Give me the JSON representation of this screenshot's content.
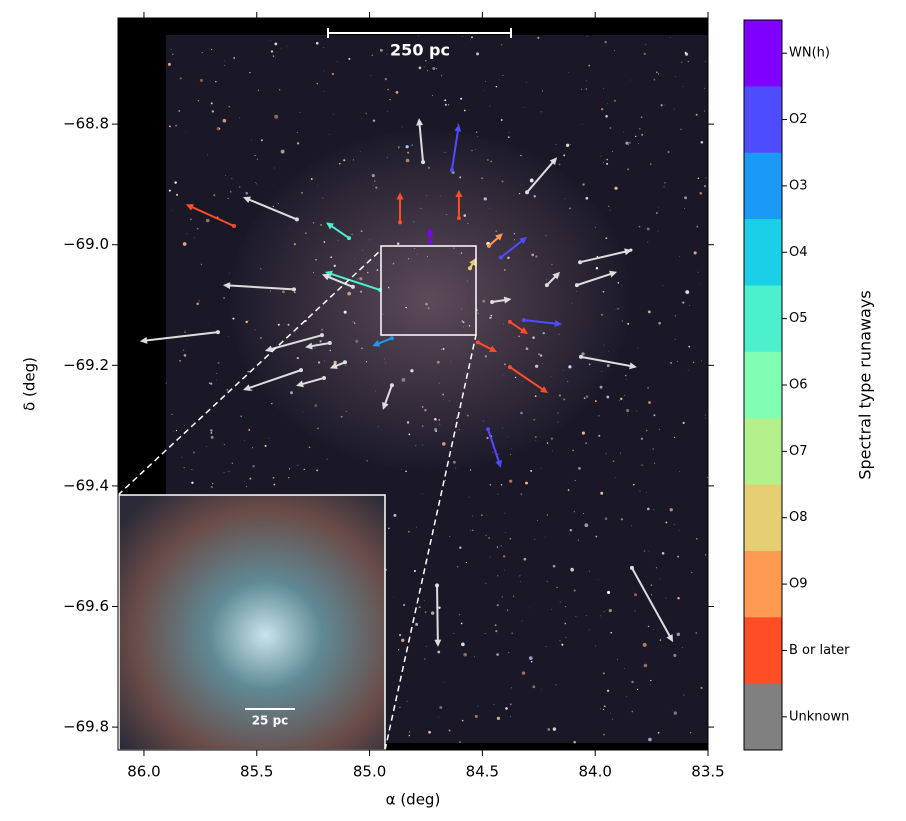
{
  "chart_data": {
    "type": "arrows",
    "x_label": "α (deg)",
    "y_label": "δ (deg)",
    "xlim": [
      86.115,
      83.5
    ],
    "ylim": [
      -69.838,
      -68.624
    ],
    "xticks": [
      {
        "value": 86,
        "label": "86.0"
      },
      85.5,
      {
        "value": 85,
        "label": "85.0"
      },
      84.5,
      {
        "value": 84,
        "label": "84.0"
      },
      83.5
    ],
    "yticks": [
      {
        "value": -68.8,
        "label": "−68.8"
      },
      {
        "value": -69.0,
        "label": "−69.0"
      },
      {
        "value": -69.2,
        "label": "−69.2"
      },
      {
        "value": -69.4,
        "label": "−69.4"
      },
      {
        "value": -69.6,
        "label": "−69.6"
      },
      {
        "value": -69.8,
        "label": "−69.8"
      }
    ],
    "colorbar_label": "Spectral type runaways",
    "annotations": [
      "250 pc",
      "25 pc"
    ],
    "series": [
      {
        "name": "WN(h)",
        "color": "#7f00ff",
        "x": [
          84.732
        ],
        "y": [
          -68.996
        ],
        "x_end": [
          84.732
        ],
        "y_end": [
          -68.972
        ]
      },
      {
        "name": "O2",
        "color": "#4d4dff",
        "x": [
          84.635,
          84.418,
          84.475,
          84.316
        ],
        "y": [
          -68.876,
          -69.021,
          -69.306,
          -69.125
        ],
        "x_end": [
          84.604,
          84.302,
          84.418,
          84.147
        ],
        "y_end": [
          -68.8,
          -68.987,
          -69.37,
          -69.132
        ]
      },
      {
        "name": "O3",
        "color": "#1a99f5",
        "x": [
          84.901
        ],
        "y": [
          -69.155
        ],
        "x_end": [
          84.988
        ],
        "y_end": [
          -69.168
        ]
      },
      {
        "name": "O4",
        "color": "#1ad0e6",
        "x": [],
        "y": [],
        "x_end": [],
        "y_end": []
      },
      {
        "name": "O5",
        "color": "#4cf0cc",
        "x": [
          85.091,
          84.954
        ],
        "y": [
          -68.989,
          -69.075
        ],
        "x_end": [
          85.193,
          85.198
        ],
        "y_end": [
          -68.963,
          -69.045
        ]
      },
      {
        "name": "O6",
        "color": "#80ffb3",
        "x": [],
        "y": [],
        "x_end": [],
        "y_end": []
      },
      {
        "name": "O7",
        "color": "#b3f08c",
        "x": [],
        "y": [],
        "x_end": [],
        "y_end": []
      },
      {
        "name": "O8",
        "color": "#e6cf73",
        "x": [
          84.555
        ],
        "y": [
          -69.039
        ],
        "x_end": [
          84.528
        ],
        "y_end": [
          -69.022
        ]
      },
      {
        "name": "O9",
        "color": "#ff9a52",
        "x": [
          84.471
        ],
        "y": [
          -69.002
        ],
        "x_end": [
          84.409
        ],
        "y_end": [
          -68.981
        ]
      },
      {
        "name": "B or later",
        "color": "#ff4d26",
        "x": [
          85.601,
          84.865,
          84.604,
          84.378,
          84.52,
          84.378
        ],
        "y": [
          -68.969,
          -68.963,
          -68.956,
          -69.203,
          -69.162,
          -69.128
        ],
        "x_end": [
          85.814,
          84.865,
          84.604,
          84.209,
          84.435,
          84.298
        ],
        "y_end": [
          -68.933,
          -68.913,
          -68.909,
          -69.246,
          -69.178,
          -69.148
        ]
      },
      {
        "name": "Unknown",
        "color": "#808080",
        "x": [
          84.763,
          84.302,
          85.322,
          84.067,
          84.081,
          84.214,
          85.335,
          85.074,
          85.672,
          85.211,
          85.176,
          85.304,
          85.109,
          85.202,
          84.901,
          84.063,
          84.701,
          83.837,
          84.457
        ],
        "y": [
          -68.863,
          -68.913,
          -68.958,
          -69.029,
          -69.067,
          -69.067,
          -69.074,
          -69.07,
          -69.145,
          -69.15,
          -69.163,
          -69.208,
          -69.195,
          -69.221,
          -69.233,
          -69.186,
          -69.565,
          -69.536,
          -69.095
        ],
        "x_end": [
          84.781,
          84.169,
          85.561,
          83.837,
          83.903,
          84.156,
          85.65,
          85.211,
          86.018,
          85.464,
          85.286,
          85.561,
          85.176,
          85.326,
          84.941,
          83.815,
          84.697,
          83.655,
          84.371
        ],
        "y_end": [
          -68.79,
          -68.855,
          -68.921,
          -69.009,
          -69.045,
          -69.045,
          -69.067,
          -69.049,
          -69.16,
          -69.176,
          -69.17,
          -69.241,
          -69.205,
          -69.234,
          -69.274,
          -69.203,
          -69.667,
          -69.659,
          -69.09
        ]
      }
    ]
  }
}
